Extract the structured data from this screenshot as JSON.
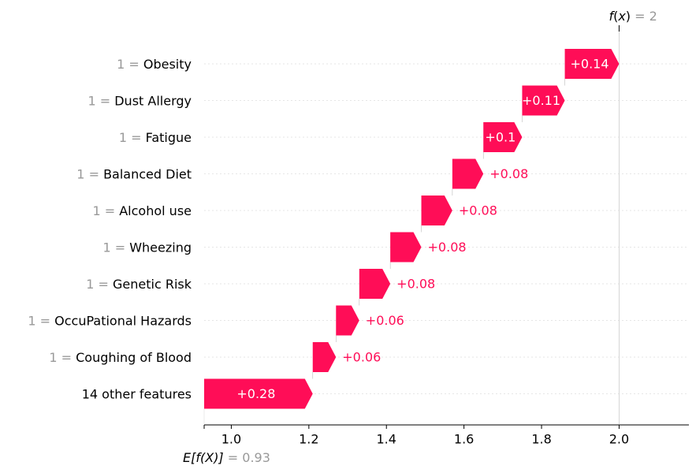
{
  "chart_data": {
    "type": "waterfall",
    "base_value": 0.93,
    "output_value": 2,
    "output_label": {
      "func": "f",
      "arg": "x",
      "value_text": "2"
    },
    "base_label": {
      "text": "E[f(X)]",
      "value_text": "0.93"
    },
    "features": [
      {
        "value": "1",
        "name": "Obesity",
        "contribution": 0.14,
        "label": "+0.14"
      },
      {
        "value": "1",
        "name": "Dust Allergy",
        "contribution": 0.11,
        "label": "+0.11"
      },
      {
        "value": "1",
        "name": "Fatigue",
        "contribution": 0.1,
        "label": "+0.1"
      },
      {
        "value": "1",
        "name": "Balanced Diet",
        "contribution": 0.08,
        "label": "+0.08"
      },
      {
        "value": "1",
        "name": "Alcohol use",
        "contribution": 0.08,
        "label": "+0.08"
      },
      {
        "value": "1",
        "name": "Wheezing",
        "contribution": 0.08,
        "label": "+0.08"
      },
      {
        "value": "1",
        "name": "Genetic Risk",
        "contribution": 0.08,
        "label": "+0.08"
      },
      {
        "value": "1",
        "name": "OccuPational Hazards",
        "contribution": 0.06,
        "label": "+0.06"
      },
      {
        "value": "1",
        "name": "Coughing of Blood",
        "contribution": 0.06,
        "label": "+0.06"
      },
      {
        "value": "",
        "name": "14 other features",
        "contribution": 0.28,
        "label": "+0.28"
      }
    ],
    "x_ticks": [
      "1.0",
      "1.2",
      "1.4",
      "1.6",
      "1.8",
      "2.0"
    ],
    "x_tick_values": [
      1.0,
      1.2,
      1.4,
      1.6,
      1.8,
      2.0
    ],
    "xlim": [
      0.93,
      2.18
    ],
    "colors": {
      "positive": "#ff0d57",
      "label_gray": "#999999",
      "text": "#000000",
      "grid": "#cccccc",
      "bar_text": "#ffffff"
    }
  }
}
